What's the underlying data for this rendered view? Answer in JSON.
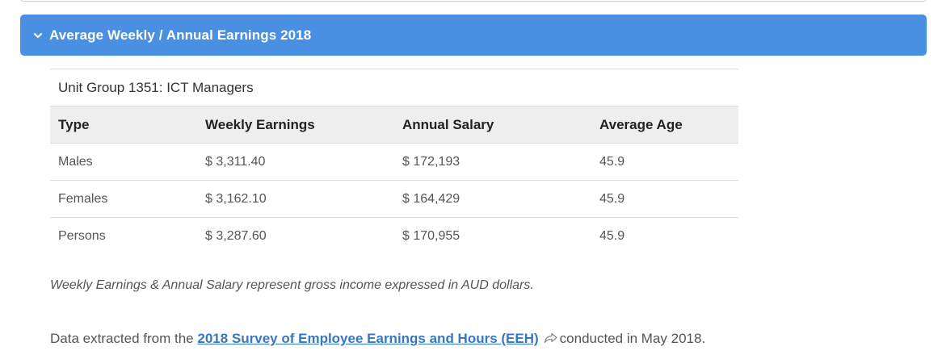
{
  "accordion": {
    "title": "Average Weekly / Annual Earnings 2018",
    "expanded": true,
    "color": "#4a90e2"
  },
  "panel": {
    "title": "Unit Group 1351: ICT Managers",
    "table": {
      "headers": [
        "Type",
        "Weekly Earnings",
        "Annual Salary",
        "Average Age"
      ],
      "rows": [
        [
          "Males",
          "$ 3,311.40",
          "$ 172,193",
          "45.9"
        ],
        [
          "Females",
          "$ 3,162.10",
          "$ 164,429",
          "45.9"
        ],
        [
          "Persons",
          "$ 3,287.60",
          "$ 170,955",
          "45.9"
        ]
      ]
    }
  },
  "note": "Weekly Earnings & Annual Salary represent gross income expressed in AUD dollars.",
  "source": {
    "prefix": "Data extracted from the ",
    "link_text": "2018 Survey of Employee Earnings and Hours (EEH)",
    "suffix": "conducted in May 2018.",
    "link_icon": "external-share-icon"
  }
}
